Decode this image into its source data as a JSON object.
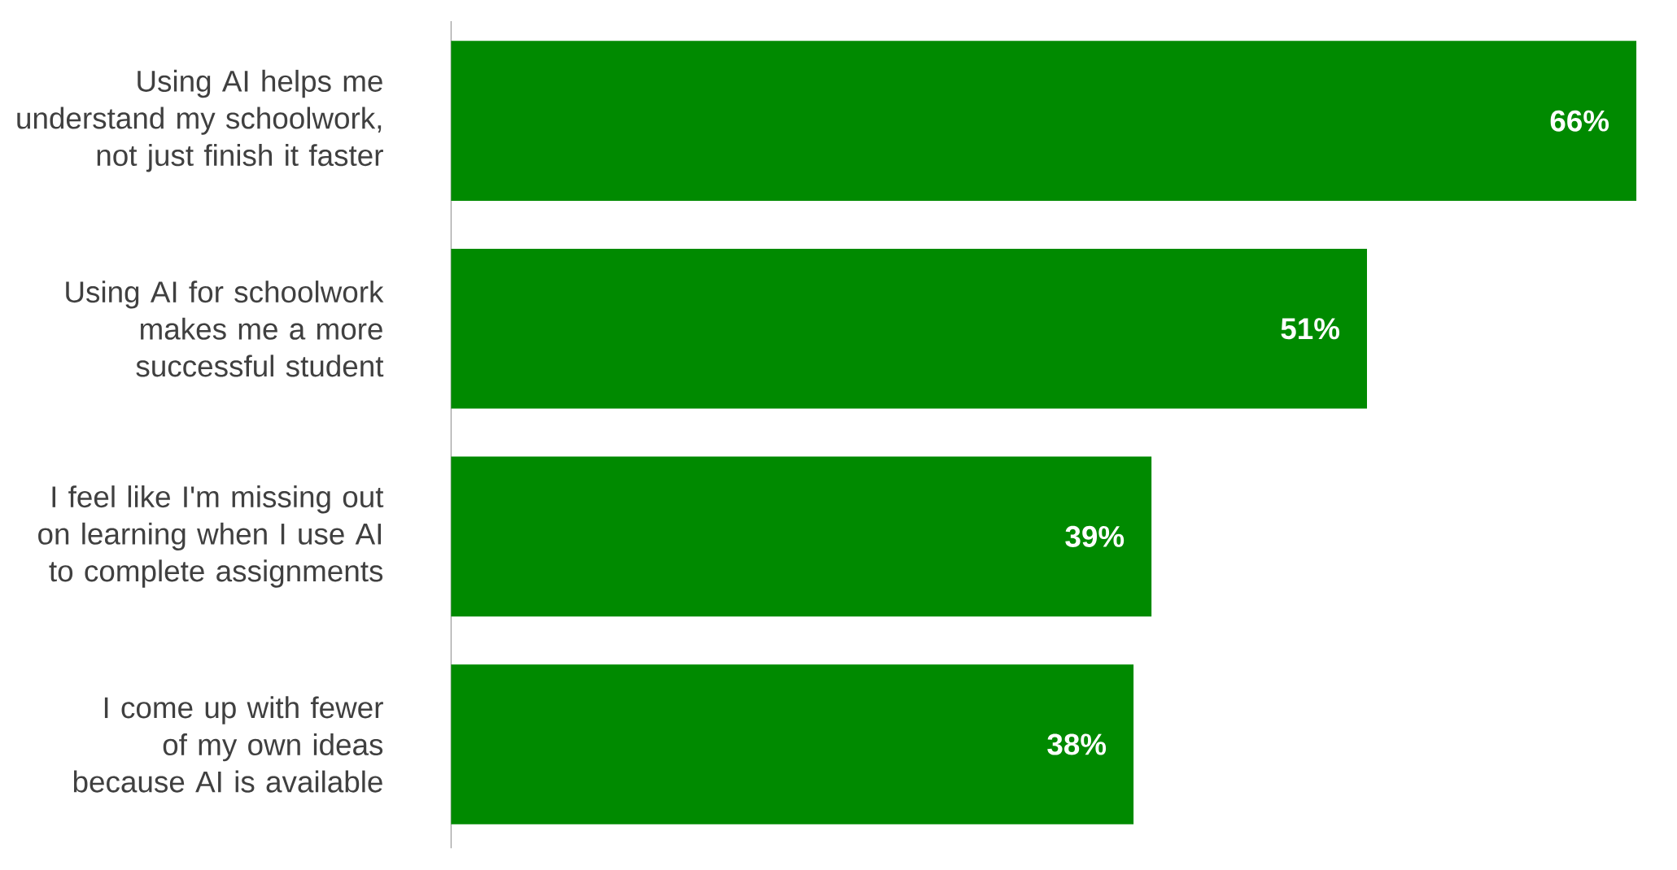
{
  "chart_data": {
    "type": "bar",
    "orientation": "horizontal",
    "categories": [
      "Using AI helps me understand my schoolwork, not just finish it faster",
      "Using AI for schoolwork makes me a more successful student",
      "I feel like I'm missing out on learning when I use AI to complete assignments",
      "I come up with fewer of my own ideas because AI is available"
    ],
    "values": [
      66,
      51,
      39,
      38
    ],
    "value_labels": [
      "66%",
      "51%",
      "39%",
      "38%"
    ],
    "color": "#008a00"
  }
}
